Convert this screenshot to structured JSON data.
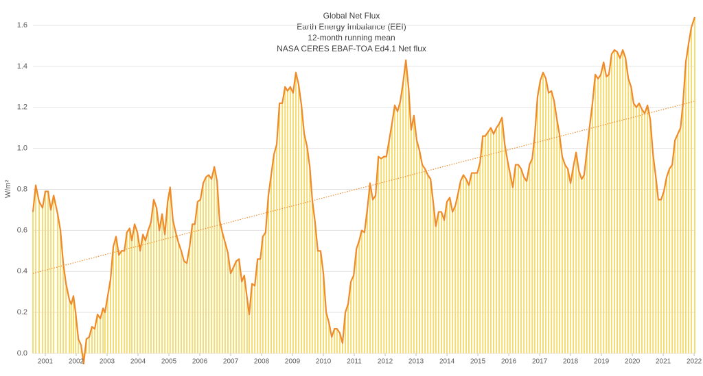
{
  "chart_data": {
    "type": "line",
    "title_lines": [
      "Global Net Flux",
      "Earth Energy Imbalance (EEI)",
      "12-month running mean",
      "NASA CERES EBAF-TOA Ed4.1 Net flux"
    ],
    "y_label": "W/m²",
    "xlim": [
      2000.6,
      2022.02
    ],
    "xticks": [
      2001,
      2002,
      2003,
      2004,
      2005,
      2006,
      2007,
      2008,
      2009,
      2010,
      2011,
      2012,
      2013,
      2014,
      2015,
      2016,
      2017,
      2018,
      2019,
      2020,
      2021,
      2022
    ],
    "ylim": [
      0,
      1.6
    ],
    "yticks": [
      {
        "value": 0,
        "label": "0.0"
      },
      0.2,
      0.4,
      0.6,
      0.8,
      {
        "value": 1,
        "label": "1.0"
      },
      1.2,
      1.4,
      1.6
    ],
    "grid": true,
    "bar_color": "#f3dc72",
    "series": [
      {
        "color": "#ef8a2a",
        "x": [
          2000.6,
          2000.69,
          2000.8,
          2000.91,
          2001.0,
          2001.09,
          2001.18,
          2001.27,
          2001.4,
          2001.49,
          2001.58,
          2001.67,
          2001.78,
          2001.84,
          2001.91,
          2001.98,
          2002.07,
          2002.16,
          2002.24,
          2002.33,
          2002.42,
          2002.51,
          2002.6,
          2002.69,
          2002.78,
          2002.87,
          2002.93,
          2003.02,
          2003.11,
          2003.2,
          2003.29,
          2003.38,
          2003.47,
          2003.56,
          2003.64,
          2003.73,
          2003.8,
          2003.89,
          2003.98,
          2004.07,
          2004.16,
          2004.24,
          2004.33,
          2004.42,
          2004.51,
          2004.6,
          2004.69,
          2004.78,
          2004.87,
          2004.96,
          2005.04,
          2005.13,
          2005.22,
          2005.31,
          2005.4,
          2005.49,
          2005.58,
          2005.67,
          2005.76,
          2005.84,
          2005.93,
          2006.02,
          2006.11,
          2006.2,
          2006.29,
          2006.38,
          2006.47,
          2006.56,
          2006.64,
          2006.73,
          2006.82,
          2006.91,
          2007.0,
          2007.09,
          2007.18,
          2007.27,
          2007.36,
          2007.44,
          2007.53,
          2007.6,
          2007.69,
          2007.78,
          2007.87,
          2007.96,
          2008.04,
          2008.13,
          2008.22,
          2008.31,
          2008.4,
          2008.49,
          2008.58,
          2008.67,
          2008.76,
          2008.84,
          2008.93,
          2009.02,
          2009.11,
          2009.2,
          2009.29,
          2009.38,
          2009.47,
          2009.56,
          2009.64,
          2009.73,
          2009.82,
          2009.91,
          2010.0,
          2010.09,
          2010.18,
          2010.27,
          2010.36,
          2010.44,
          2010.53,
          2010.62,
          2010.71,
          2010.8,
          2010.89,
          2010.98,
          2011.07,
          2011.16,
          2011.24,
          2011.33,
          2011.42,
          2011.51,
          2011.6,
          2011.69,
          2011.78,
          2011.87,
          2011.96,
          2012.04,
          2012.13,
          2012.22,
          2012.31,
          2012.4,
          2012.49,
          2012.58,
          2012.67,
          2012.76,
          2012.84,
          2012.93,
          2013.02,
          2013.11,
          2013.2,
          2013.29,
          2013.38,
          2013.47,
          2013.56,
          2013.64,
          2013.73,
          2013.82,
          2013.91,
          2014.0,
          2014.09,
          2014.18,
          2014.27,
          2014.36,
          2014.44,
          2014.53,
          2014.62,
          2014.71,
          2014.8,
          2014.89,
          2014.98,
          2015.07,
          2015.16,
          2015.24,
          2015.33,
          2015.42,
          2015.51,
          2015.6,
          2015.69,
          2015.78,
          2015.87,
          2015.96,
          2016.04,
          2016.13,
          2016.22,
          2016.31,
          2016.4,
          2016.49,
          2016.58,
          2016.67,
          2016.76,
          2016.84,
          2016.93,
          2017.02,
          2017.11,
          2017.2,
          2017.29,
          2017.38,
          2017.47,
          2017.56,
          2017.64,
          2017.73,
          2017.82,
          2017.91,
          2018.0,
          2018.09,
          2018.18,
          2018.27,
          2018.36,
          2018.44,
          2018.53,
          2018.62,
          2018.71,
          2018.8,
          2018.89,
          2018.98,
          2019.07,
          2019.16,
          2019.24,
          2019.33,
          2019.42,
          2019.51,
          2019.6,
          2019.69,
          2019.78,
          2019.87,
          2019.96,
          2020.04,
          2020.13,
          2020.22,
          2020.31,
          2020.4,
          2020.49,
          2020.58,
          2020.67,
          2020.76,
          2020.84,
          2020.93,
          2021.02,
          2021.11,
          2021.2,
          2021.29,
          2021.38,
          2021.47,
          2021.56,
          2021.64,
          2021.73,
          2021.82,
          2021.91,
          2022.02
        ],
        "values": [
          0.69,
          0.82,
          0.74,
          0.71,
          0.79,
          0.79,
          0.7,
          0.77,
          0.68,
          0.6,
          0.44,
          0.34,
          0.26,
          0.24,
          0.28,
          0.2,
          0.07,
          0.04,
          -0.05,
          0.07,
          0.08,
          0.13,
          0.12,
          0.19,
          0.17,
          0.22,
          0.2,
          0.28,
          0.36,
          0.52,
          0.57,
          0.48,
          0.5,
          0.5,
          0.59,
          0.61,
          0.55,
          0.63,
          0.59,
          0.5,
          0.58,
          0.55,
          0.6,
          0.64,
          0.75,
          0.71,
          0.6,
          0.68,
          0.58,
          0.74,
          0.81,
          0.65,
          0.59,
          0.54,
          0.5,
          0.45,
          0.44,
          0.52,
          0.63,
          0.63,
          0.74,
          0.75,
          0.83,
          0.86,
          0.87,
          0.85,
          0.91,
          0.84,
          0.65,
          0.59,
          0.54,
          0.49,
          0.39,
          0.42,
          0.45,
          0.46,
          0.35,
          0.38,
          0.27,
          0.19,
          0.34,
          0.33,
          0.46,
          0.46,
          0.57,
          0.59,
          0.77,
          0.87,
          0.97,
          1.02,
          1.22,
          1.22,
          1.3,
          1.28,
          1.3,
          1.27,
          1.37,
          1.31,
          1.21,
          1.07,
          1.01,
          0.91,
          0.75,
          0.64,
          0.5,
          0.5,
          0.39,
          0.2,
          0.15,
          0.08,
          0.12,
          0.12,
          0.1,
          0.05,
          0.2,
          0.24,
          0.35,
          0.38,
          0.51,
          0.55,
          0.6,
          0.59,
          0.7,
          0.83,
          0.75,
          0.77,
          0.96,
          0.95,
          0.96,
          0.96,
          1.04,
          1.12,
          1.21,
          1.18,
          1.23,
          1.32,
          1.43,
          1.29,
          1.09,
          1.16,
          1.04,
          0.99,
          0.92,
          0.9,
          0.87,
          0.85,
          0.73,
          0.62,
          0.69,
          0.69,
          0.65,
          0.74,
          0.76,
          0.69,
          0.72,
          0.78,
          0.84,
          0.87,
          0.85,
          0.82,
          0.88,
          0.88,
          0.88,
          0.93,
          1.06,
          1.06,
          1.08,
          1.1,
          1.07,
          1.1,
          1.12,
          1.15,
          1.02,
          0.94,
          0.88,
          0.81,
          0.92,
          0.92,
          0.9,
          0.86,
          0.84,
          0.92,
          0.95,
          1.06,
          1.25,
          1.33,
          1.37,
          1.34,
          1.27,
          1.28,
          1.23,
          1.14,
          1.07,
          0.96,
          0.92,
          0.9,
          0.83,
          0.91,
          0.98,
          0.89,
          0.85,
          0.87,
          0.99,
          1.11,
          1.22,
          1.36,
          1.34,
          1.36,
          1.42,
          1.35,
          1.36,
          1.46,
          1.48,
          1.47,
          1.44,
          1.48,
          1.44,
          1.34,
          1.3,
          1.22,
          1.2,
          1.22,
          1.19,
          1.17,
          1.21,
          1.14,
          0.97,
          0.86,
          0.75,
          0.75,
          0.79,
          0.86,
          0.9,
          0.92,
          1.04,
          1.07,
          1.1,
          1.22,
          1.42,
          1.51,
          1.59,
          1.64
        ]
      }
    ],
    "trend": {
      "color": "#ef8a2a",
      "x": [
        2000.6,
        2022.02
      ],
      "values": [
        0.39,
        1.23
      ]
    }
  }
}
